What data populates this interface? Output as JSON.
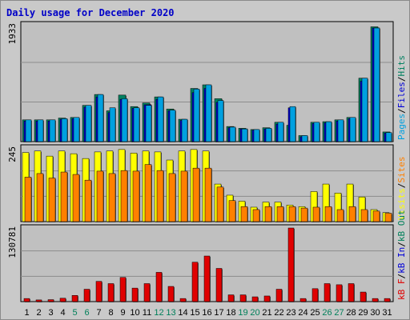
{
  "title": "Daily usage for December 2020",
  "colors": {
    "pages": "#00a0e0",
    "files": "#0000d8",
    "hits": "#008060",
    "visits": "#ffff00",
    "sites": "#ff8000",
    "kb_out": "#00805a",
    "kb_in": "#0000d8",
    "kb_f": "#e00000",
    "weekend_day": "#00805a",
    "weekday": "#000000"
  },
  "chart_data": [
    {
      "type": "bar",
      "panel": "hits",
      "max_label": "1933",
      "ylim": [
        0,
        1933
      ],
      "grid": true,
      "legend": [
        {
          "label": "Pages",
          "color_key": "pages"
        },
        {
          "label": "Files",
          "color_key": "files"
        },
        {
          "label": "Hits",
          "color_key": "hits"
        }
      ],
      "categories": [
        "1",
        "2",
        "3",
        "4",
        "5",
        "6",
        "7",
        "8",
        "9",
        "10",
        "11",
        "12",
        "13",
        "14",
        "15",
        "16",
        "17",
        "18",
        "19",
        "20",
        "21",
        "22",
        "23",
        "24",
        "25",
        "26",
        "27",
        "28",
        "29",
        "30",
        "31"
      ],
      "series": [
        {
          "name": "Hits",
          "color_key": "hits",
          "values": [
            360,
            360,
            360,
            390,
            400,
            600,
            780,
            510,
            770,
            580,
            640,
            740,
            540,
            370,
            880,
            940,
            710,
            250,
            220,
            200,
            230,
            320,
            270,
            100,
            320,
            330,
            360,
            400,
            1050,
            1900,
            160
          ]
        },
        {
          "name": "Files",
          "color_key": "files",
          "values": [
            340,
            340,
            340,
            370,
            380,
            570,
            740,
            480,
            700,
            550,
            610,
            700,
            510,
            350,
            810,
            880,
            650,
            230,
            210,
            190,
            210,
            290,
            560,
            80,
            300,
            310,
            340,
            380,
            1000,
            1880,
            140
          ]
        },
        {
          "name": "Pages",
          "color_key": "pages",
          "values": [
            360,
            360,
            360,
            380,
            400,
            600,
            780,
            560,
            710,
            560,
            600,
            740,
            520,
            370,
            870,
            940,
            680,
            240,
            210,
            200,
            220,
            320,
            580,
            100,
            320,
            330,
            360,
            400,
            1050,
            1880,
            150
          ]
        }
      ]
    },
    {
      "type": "bar",
      "panel": "visits",
      "max_label": "245",
      "ylim": [
        0,
        245
      ],
      "grid": true,
      "legend": [
        {
          "label": "Visits",
          "color_key": "visits"
        },
        {
          "label": "Sites",
          "color_key": "sites"
        }
      ],
      "categories": [
        "1",
        "2",
        "3",
        "4",
        "5",
        "6",
        "7",
        "8",
        "9",
        "10",
        "11",
        "12",
        "13",
        "14",
        "15",
        "16",
        "17",
        "18",
        "19",
        "20",
        "21",
        "22",
        "23",
        "24",
        "25",
        "26",
        "27",
        "28",
        "29",
        "30",
        "31"
      ],
      "series": [
        {
          "name": "Visits",
          "color_key": "visits",
          "values": [
            230,
            235,
            218,
            235,
            226,
            210,
            232,
            235,
            240,
            228,
            235,
            232,
            205,
            235,
            240,
            235,
            125,
            88,
            68,
            48,
            65,
            65,
            55,
            50,
            100,
            125,
            95,
            125,
            82,
            40,
            30
          ]
        },
        {
          "name": "Sites",
          "color_key": "sites",
          "values": [
            148,
            160,
            145,
            165,
            157,
            138,
            168,
            160,
            170,
            168,
            190,
            170,
            160,
            168,
            178,
            178,
            115,
            70,
            50,
            40,
            50,
            50,
            50,
            45,
            48,
            50,
            40,
            50,
            40,
            35,
            28
          ]
        }
      ]
    },
    {
      "type": "bar",
      "panel": "kbytes",
      "max_label": "130781",
      "ylim": [
        0,
        130781
      ],
      "grid": true,
      "legend": [
        {
          "label": "kB F",
          "color_key": "kb_f"
        },
        {
          "label": "kB In",
          "color_key": "kb_in"
        },
        {
          "label": "kB Out",
          "color_key": "kb_out"
        }
      ],
      "categories": [
        "1",
        "2",
        "3",
        "4",
        "5",
        "6",
        "7",
        "8",
        "9",
        "10",
        "11",
        "12",
        "13",
        "14",
        "15",
        "16",
        "17",
        "18",
        "19",
        "20",
        "21",
        "22",
        "23",
        "24",
        "25",
        "26",
        "27",
        "28",
        "29",
        "30",
        "31"
      ],
      "series": [
        {
          "name": "kB F",
          "color_key": "kb_f",
          "values": [
            5500,
            3000,
            3500,
            6000,
            11000,
            22000,
            36000,
            32000,
            43000,
            24000,
            32000,
            52000,
            27000,
            5500,
            70000,
            81000,
            59000,
            12000,
            12000,
            8500,
            10000,
            22000,
            130781,
            5500,
            23000,
            32000,
            30000,
            32000,
            17000,
            5500,
            5500
          ]
        }
      ]
    }
  ],
  "x_axis": {
    "day_labels": [
      "1",
      "2",
      "3",
      "4",
      "5",
      "6",
      "7",
      "8",
      "9",
      "10",
      "11",
      "12",
      "13",
      "14",
      "15",
      "16",
      "17",
      "18",
      "19",
      "20",
      "21",
      "22",
      "23",
      "24",
      "25",
      "26",
      "27",
      "28",
      "29",
      "30",
      "31"
    ],
    "weekend_days": [
      "5",
      "6",
      "12",
      "13",
      "19",
      "20",
      "26",
      "27"
    ]
  }
}
